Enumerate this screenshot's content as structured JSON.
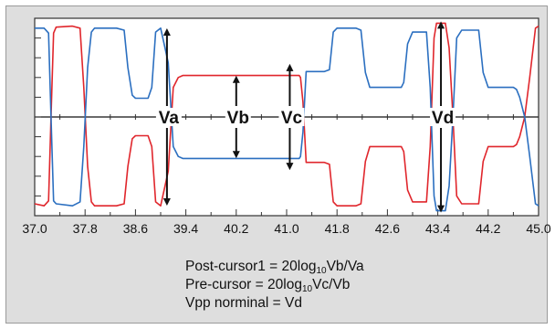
{
  "chart_data": {
    "type": "line",
    "title": "",
    "xlabel": "",
    "ylabel": "",
    "xlim": [
      37.0,
      45.0
    ],
    "x_tick_labels": [
      "37.0",
      "37.8",
      "38.6",
      "39.4",
      "40.2",
      "41.0",
      "41.8",
      "42.6",
      "43.4",
      "44.2",
      "45.0"
    ],
    "y_divisions": 10,
    "grid": false,
    "series": [
      {
        "color": "#e0262c",
        "points": [
          [
            37.0,
            -0.88
          ],
          [
            37.15,
            -0.9
          ],
          [
            37.22,
            -0.85
          ],
          [
            37.26,
            0.0
          ],
          [
            37.3,
            0.85
          ],
          [
            37.34,
            0.91
          ],
          [
            37.6,
            0.92
          ],
          [
            37.72,
            0.9
          ],
          [
            37.78,
            0.3
          ],
          [
            37.84,
            -0.5
          ],
          [
            37.9,
            -0.86
          ],
          [
            37.95,
            -0.9
          ],
          [
            38.3,
            -0.9
          ],
          [
            38.42,
            -0.88
          ],
          [
            38.48,
            -0.5
          ],
          [
            38.55,
            -0.22
          ],
          [
            38.6,
            -0.19
          ],
          [
            38.8,
            -0.19
          ],
          [
            38.86,
            -0.3
          ],
          [
            38.92,
            -0.86
          ],
          [
            39.0,
            -0.9
          ],
          [
            39.12,
            -0.55
          ],
          [
            39.2,
            0.3
          ],
          [
            39.28,
            0.4
          ],
          [
            39.35,
            0.42
          ],
          [
            41.2,
            0.42
          ],
          [
            41.22,
            0.4
          ],
          [
            41.26,
            0.15
          ],
          [
            41.31,
            -0.46
          ],
          [
            41.6,
            -0.46
          ],
          [
            41.68,
            -0.48
          ],
          [
            41.74,
            -0.86
          ],
          [
            41.8,
            -0.9
          ],
          [
            42.1,
            -0.9
          ],
          [
            42.18,
            -0.88
          ],
          [
            42.25,
            -0.45
          ],
          [
            42.32,
            -0.3
          ],
          [
            42.82,
            -0.3
          ],
          [
            42.86,
            -0.35
          ],
          [
            42.92,
            -0.74
          ],
          [
            43.0,
            -0.86
          ],
          [
            43.22,
            -0.86
          ],
          [
            43.28,
            -0.3
          ],
          [
            43.34,
            0.8
          ],
          [
            43.38,
            0.95
          ],
          [
            43.52,
            0.95
          ],
          [
            43.58,
            0.7
          ],
          [
            43.64,
            0.0
          ],
          [
            43.7,
            -0.8
          ],
          [
            43.78,
            -0.88
          ],
          [
            44.05,
            -0.88
          ],
          [
            44.12,
            -0.45
          ],
          [
            44.2,
            -0.3
          ],
          [
            44.6,
            -0.3
          ],
          [
            44.65,
            -0.28
          ],
          [
            44.7,
            -0.2
          ],
          [
            44.78,
            0.0
          ],
          [
            44.86,
            0.4
          ],
          [
            44.95,
            0.9
          ],
          [
            45.0,
            0.92
          ]
        ]
      },
      {
        "color": "#2b6fc0",
        "points": [
          [
            37.0,
            0.9
          ],
          [
            37.15,
            0.9
          ],
          [
            37.22,
            0.85
          ],
          [
            37.26,
            0.0
          ],
          [
            37.3,
            -0.85
          ],
          [
            37.34,
            -0.88
          ],
          [
            37.6,
            -0.9
          ],
          [
            37.72,
            -0.86
          ],
          [
            37.78,
            -0.3
          ],
          [
            37.84,
            0.5
          ],
          [
            37.9,
            0.86
          ],
          [
            37.95,
            0.9
          ],
          [
            38.3,
            0.9
          ],
          [
            38.42,
            0.88
          ],
          [
            38.48,
            0.5
          ],
          [
            38.55,
            0.22
          ],
          [
            38.6,
            0.19
          ],
          [
            38.8,
            0.19
          ],
          [
            38.86,
            0.3
          ],
          [
            38.92,
            0.86
          ],
          [
            39.0,
            0.9
          ],
          [
            39.12,
            0.55
          ],
          [
            39.2,
            -0.3
          ],
          [
            39.28,
            -0.4
          ],
          [
            39.35,
            -0.42
          ],
          [
            41.2,
            -0.42
          ],
          [
            41.22,
            -0.4
          ],
          [
            41.26,
            -0.15
          ],
          [
            41.31,
            0.46
          ],
          [
            41.6,
            0.46
          ],
          [
            41.68,
            0.48
          ],
          [
            41.74,
            0.86
          ],
          [
            41.8,
            0.9
          ],
          [
            42.1,
            0.9
          ],
          [
            42.18,
            0.88
          ],
          [
            42.25,
            0.45
          ],
          [
            42.32,
            0.3
          ],
          [
            42.82,
            0.3
          ],
          [
            42.86,
            0.35
          ],
          [
            42.92,
            0.74
          ],
          [
            43.0,
            0.86
          ],
          [
            43.22,
            0.86
          ],
          [
            43.28,
            0.3
          ],
          [
            43.34,
            -0.8
          ],
          [
            43.38,
            -0.95
          ],
          [
            43.52,
            -0.95
          ],
          [
            43.58,
            -0.7
          ],
          [
            43.64,
            0.0
          ],
          [
            43.7,
            0.8
          ],
          [
            43.78,
            0.88
          ],
          [
            44.05,
            0.88
          ],
          [
            44.12,
            0.45
          ],
          [
            44.2,
            0.3
          ],
          [
            44.6,
            0.3
          ],
          [
            44.65,
            0.28
          ],
          [
            44.7,
            0.2
          ],
          [
            44.78,
            0.0
          ],
          [
            44.86,
            -0.4
          ],
          [
            44.95,
            -0.88
          ],
          [
            45.0,
            -0.9
          ]
        ]
      }
    ],
    "annotations": [
      {
        "label": "Va",
        "x": 39.1,
        "y_top": 0.88,
        "y_bottom": -0.88
      },
      {
        "label": "Vb",
        "x": 40.2,
        "y_top": 0.4,
        "y_bottom": -0.4
      },
      {
        "label": "Vc",
        "x": 41.05,
        "y_top": 0.52,
        "y_bottom": -0.52
      },
      {
        "label": "Vd",
        "x": 43.45,
        "y_top": 0.95,
        "y_bottom": -0.95
      }
    ]
  },
  "equations": {
    "post_cursor_prefix": "Post-cursor1 = 20log",
    "post_cursor_sub": "10",
    "post_cursor_suffix": "Vb/Va",
    "pre_cursor_prefix": "Pre-cursor = 20log",
    "pre_cursor_sub": "10",
    "pre_cursor_suffix": "Vc/Vb",
    "vpp_text": "Vpp norminal = Vd"
  },
  "colors": {
    "panel": "#dedede",
    "plot_bg": "#ffffff",
    "red_trace": "#e0262c",
    "blue_trace": "#2b6fc0"
  }
}
